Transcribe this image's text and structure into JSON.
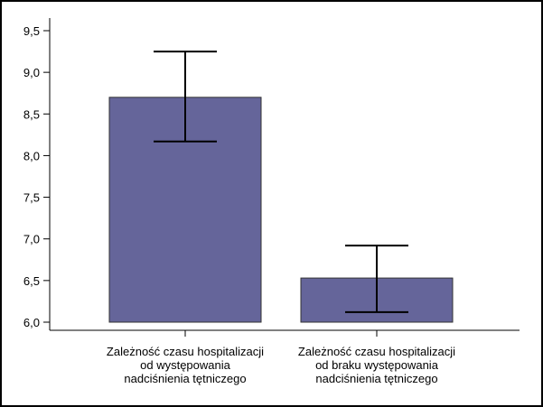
{
  "chart_data": {
    "type": "bar",
    "categories": [
      [
        "Zależność czasu hospitalizacji",
        "od występowania",
        "nadciśnienia tętniczego"
      ],
      [
        "Zależność czasu hospitalizacji",
        "od braku występowania",
        "nadciśnienia tętniczego"
      ]
    ],
    "values": [
      8.7,
      6.53
    ],
    "error_low": [
      8.17,
      6.12
    ],
    "error_high": [
      9.25,
      6.92
    ],
    "ylim": [
      6.0,
      9.5
    ],
    "yticks": [
      "6,0",
      "6,5",
      "7,0",
      "7,5",
      "8,0",
      "8,5",
      "9,0",
      "9,5"
    ],
    "title": "",
    "xlabel": "",
    "ylabel": "",
    "grid": false,
    "bar_color": "#65659a"
  }
}
